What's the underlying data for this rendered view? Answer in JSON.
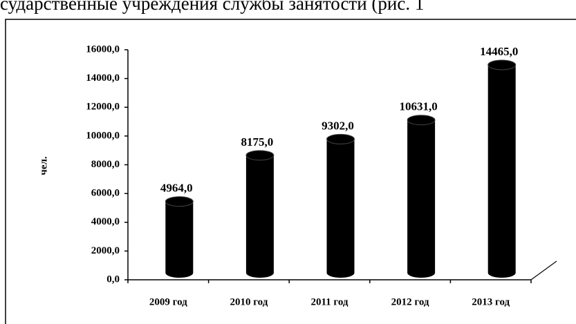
{
  "context_text": "сударственные учреждения службы занятости (рис. 1",
  "chart_data": {
    "type": "bar",
    "y_label": "чел.",
    "categories": [
      "2009 год",
      "2010 год",
      "2011 год",
      "2012 год",
      "2013 год"
    ],
    "values": [
      4964,
      8175,
      9302,
      10631,
      14465
    ],
    "value_labels": [
      "4964,0",
      "8175,0",
      "9302,0",
      "10631,0",
      "14465,0"
    ],
    "color": "#000000",
    "ylim": [
      0,
      16000
    ],
    "yticks": [
      {
        "value": 0,
        "label": "0,0"
      },
      {
        "value": 2000,
        "label": "2000,0"
      },
      {
        "value": 4000,
        "label": "4000,0"
      },
      {
        "value": 6000,
        "label": "6000,0"
      },
      {
        "value": 8000,
        "label": "8000,0"
      },
      {
        "value": 10000,
        "label": "10000,0"
      },
      {
        "value": 12000,
        "label": "12000,0"
      },
      {
        "value": 14000,
        "label": "14000,0"
      },
      {
        "value": 16000,
        "label": "16000,0"
      }
    ],
    "grid": false
  }
}
